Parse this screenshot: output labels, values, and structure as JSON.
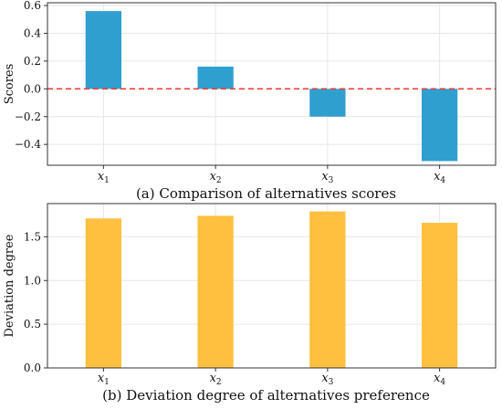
{
  "chart_data": [
    {
      "type": "bar",
      "caption": "(a) Comparison of alternatives scores",
      "ylabel": "Scores",
      "categories": [
        "x1",
        "x2",
        "x3",
        "x4"
      ],
      "category_labels": [
        {
          "base": "x",
          "sub": "1"
        },
        {
          "base": "x",
          "sub": "2"
        },
        {
          "base": "x",
          "sub": "3"
        },
        {
          "base": "x",
          "sub": "4"
        }
      ],
      "values": [
        0.56,
        0.16,
        -0.2,
        -0.52
      ],
      "ylim": [
        -0.55,
        0.62
      ],
      "yticks": [
        -0.4,
        -0.2,
        0.0,
        0.2,
        0.4,
        0.6
      ],
      "ytick_labels": [
        "−0.4",
        "−0.2",
        "0.0",
        "0.2",
        "0.4",
        "0.6"
      ],
      "color": "#2f9fd0",
      "reference_line": {
        "y": 0.0,
        "color": "#e8403a",
        "style": "dashed"
      },
      "grid": true
    },
    {
      "type": "bar",
      "caption": "(b) Deviation degree of alternatives preference",
      "ylabel": "Deviation degree",
      "categories": [
        "x1",
        "x2",
        "x3",
        "x4"
      ],
      "category_labels": [
        {
          "base": "x",
          "sub": "1"
        },
        {
          "base": "x",
          "sub": "2"
        },
        {
          "base": "x",
          "sub": "3"
        },
        {
          "base": "x",
          "sub": "4"
        }
      ],
      "values": [
        1.71,
        1.74,
        1.79,
        1.66
      ],
      "ylim": [
        0,
        1.88
      ],
      "yticks": [
        0.0,
        0.5,
        1.0,
        1.5
      ],
      "ytick_labels": [
        "0.0",
        "0.5",
        "1.0",
        "1.5"
      ],
      "color": "#ffbf3f",
      "grid": true
    }
  ]
}
